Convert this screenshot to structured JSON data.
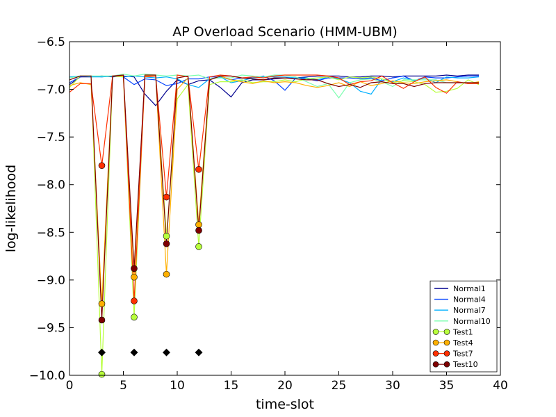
{
  "chart_data": {
    "type": "line",
    "title": "AP Overload Scenario (HMM-UBM)",
    "xlabel": "time-slot",
    "ylabel": "log-likelihood",
    "xlim": [
      0,
      40
    ],
    "ylim": [
      -10.0,
      -6.5
    ],
    "x_ticks": [
      "0",
      "5",
      "10",
      "15",
      "20",
      "25",
      "30",
      "35",
      "40"
    ],
    "y_ticks": [
      "−6.5",
      "−7.0",
      "−7.5",
      "−8.0",
      "−8.5",
      "−9.0",
      "−9.5",
      "−10.0"
    ],
    "grid": false,
    "legend_position": "bottom-right",
    "x": [
      0,
      1,
      2,
      3,
      4,
      5,
      6,
      7,
      8,
      9,
      10,
      11,
      12,
      13,
      14,
      15,
      16,
      17,
      18,
      19,
      20,
      21,
      22,
      23,
      24,
      25,
      26,
      27,
      28,
      29,
      30,
      31,
      32,
      33,
      34,
      35,
      36,
      37,
      38
    ],
    "series": [
      {
        "name": "Normal1",
        "color": "#00008f",
        "marker": false,
        "values": [
          -6.95,
          -6.87,
          -6.87,
          -6.86,
          -6.87,
          -6.86,
          -6.87,
          -7.05,
          -7.17,
          -7.02,
          -6.9,
          -6.95,
          -6.91,
          -6.9,
          -6.98,
          -7.08,
          -6.93,
          -6.9,
          -6.9,
          -6.89,
          -6.88,
          -6.88,
          -6.87,
          -6.86,
          -6.86,
          -6.86,
          -6.87,
          -6.87,
          -6.86,
          -6.86,
          -6.87,
          -6.86,
          -6.86,
          -6.86,
          -6.86,
          -6.85,
          -6.86,
          -6.85,
          -6.85
        ]
      },
      {
        "name": "Normal4",
        "color": "#0040ff",
        "marker": false,
        "values": [
          -6.93,
          -6.87,
          -6.86,
          -6.87,
          -6.86,
          -6.87,
          -6.95,
          -6.89,
          -6.9,
          -6.96,
          -6.94,
          -6.89,
          -6.89,
          -6.87,
          -6.87,
          -6.9,
          -6.88,
          -6.88,
          -6.86,
          -6.91,
          -7.01,
          -6.88,
          -6.89,
          -6.91,
          -6.88,
          -6.88,
          -6.88,
          -6.89,
          -6.88,
          -6.91,
          -6.88,
          -6.86,
          -6.91,
          -6.87,
          -6.88,
          -6.88,
          -6.87,
          -6.86,
          -6.86
        ]
      },
      {
        "name": "Normal7",
        "color": "#00b0ff",
        "marker": false,
        "values": [
          -6.87,
          -6.86,
          -6.87,
          -6.87,
          -6.86,
          -6.87,
          -6.86,
          -6.87,
          -6.88,
          -6.87,
          -6.89,
          -6.95,
          -6.98,
          -6.89,
          -6.87,
          -6.93,
          -6.91,
          -6.88,
          -6.87,
          -6.87,
          -6.87,
          -6.88,
          -6.88,
          -6.9,
          -6.87,
          -6.89,
          -6.93,
          -7.02,
          -7.05,
          -6.89,
          -6.92,
          -6.88,
          -6.91,
          -6.88,
          -6.93,
          -6.87,
          -6.88,
          -6.88,
          -6.87
        ]
      },
      {
        "name": "Normal10",
        "color": "#7dffb0",
        "marker": false,
        "values": [
          -6.88,
          -6.86,
          -6.86,
          -6.86,
          -6.86,
          -6.84,
          -6.86,
          -6.84,
          -6.85,
          -6.86,
          -6.85,
          -6.86,
          -6.85,
          -6.89,
          -6.88,
          -6.88,
          -6.85,
          -6.86,
          -6.87,
          -6.85,
          -6.85,
          -6.87,
          -6.92,
          -6.97,
          -6.94,
          -7.09,
          -6.93,
          -6.9,
          -6.89,
          -6.92,
          -6.97,
          -6.9,
          -6.9,
          -6.9,
          -6.9,
          -6.93,
          -6.93,
          -6.93,
          -6.94
        ]
      },
      {
        "name": "Test1",
        "color": "#b8ff3c",
        "marker": true,
        "values": [
          -6.98,
          -6.86,
          -6.86,
          -9.99,
          -6.86,
          -6.87,
          -9.39,
          -6.85,
          -6.85,
          -8.54,
          -7.1,
          -6.95,
          -8.65,
          -6.95,
          -6.92,
          -6.92,
          -6.9,
          -6.93,
          -6.92,
          -6.92,
          -6.9,
          -6.92,
          -6.89,
          -6.88,
          -6.87,
          -6.9,
          -6.87,
          -6.88,
          -6.87,
          -6.89,
          -6.93,
          -6.91,
          -6.92,
          -6.95,
          -7.03,
          -7.02,
          -6.99,
          -6.9,
          -6.95
        ]
      },
      {
        "name": "Test4",
        "color": "#ffb000",
        "marker": true,
        "values": [
          -6.96,
          -6.93,
          -6.95,
          -9.25,
          -6.86,
          -6.86,
          -8.97,
          -6.86,
          -6.86,
          -8.94,
          -7.0,
          -6.88,
          -8.42,
          -6.9,
          -6.86,
          -6.9,
          -6.92,
          -6.94,
          -6.91,
          -6.93,
          -6.92,
          -6.93,
          -6.96,
          -6.98,
          -6.96,
          -6.93,
          -6.97,
          -6.92,
          -6.96,
          -6.94,
          -6.91,
          -6.93,
          -6.94,
          -6.92,
          -6.91,
          -6.9,
          -6.92,
          -6.94,
          -6.92
        ]
      },
      {
        "name": "Test7",
        "color": "#ff3000",
        "marker": true,
        "values": [
          -7.03,
          -6.94,
          -6.94,
          -7.8,
          -6.86,
          -6.85,
          -9.22,
          -6.87,
          -6.86,
          -8.13,
          -6.85,
          -6.87,
          -7.84,
          -6.87,
          -6.85,
          -6.86,
          -6.88,
          -6.87,
          -6.88,
          -6.86,
          -6.85,
          -6.85,
          -6.85,
          -6.85,
          -6.86,
          -6.88,
          -6.95,
          -6.92,
          -6.91,
          -6.86,
          -6.93,
          -6.99,
          -6.92,
          -6.87,
          -6.98,
          -7.04,
          -6.92,
          -6.94,
          -6.94
        ]
      },
      {
        "name": "Test10",
        "color": "#7f0000",
        "marker": true,
        "values": [
          -6.9,
          -6.86,
          -6.86,
          -9.42,
          -6.86,
          -6.85,
          -8.88,
          -6.85,
          -6.85,
          -8.62,
          -6.88,
          -6.86,
          -8.48,
          -6.9,
          -6.86,
          -6.86,
          -6.88,
          -6.89,
          -6.9,
          -6.88,
          -6.88,
          -6.89,
          -6.9,
          -6.9,
          -6.94,
          -6.97,
          -6.95,
          -6.98,
          -6.93,
          -6.92,
          -6.94,
          -6.94,
          -6.97,
          -6.94,
          -6.93,
          -6.93,
          -6.93,
          -6.93,
          -6.93
        ]
      }
    ],
    "markers": {
      "shape": "diamond",
      "color": "#000000",
      "x": [
        3,
        6,
        9,
        12
      ],
      "y": [
        -9.76,
        -9.76,
        -9.76,
        -9.76
      ]
    }
  }
}
